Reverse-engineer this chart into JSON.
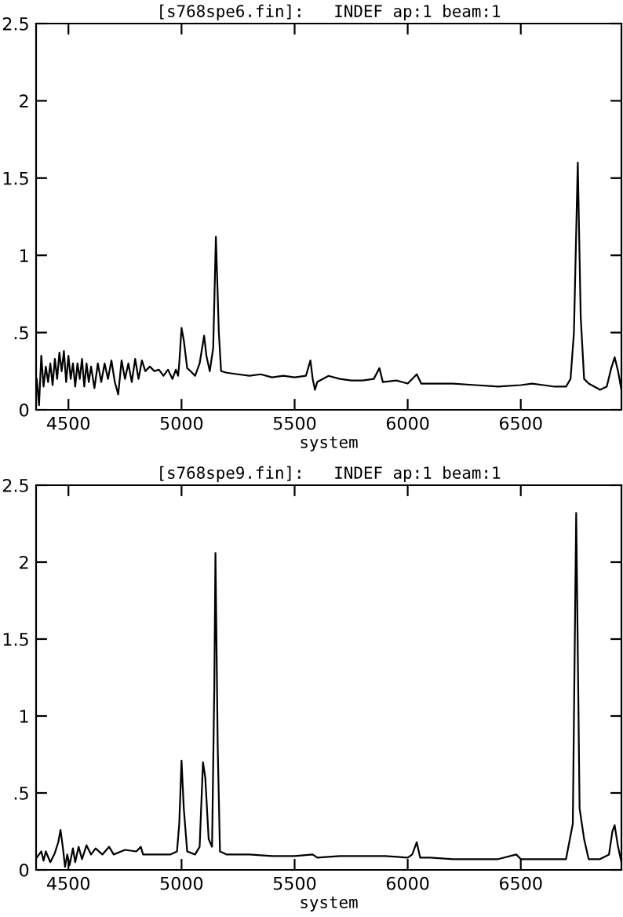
{
  "chart_data": [
    {
      "type": "line",
      "title": "[s768spe6.fin]:   INDEF ap:1 beam:1",
      "xlabel": "system",
      "xlim": [
        4357,
        6945
      ],
      "xticks": [
        4500,
        5000,
        5500,
        6000,
        6500
      ],
      "ylim": [
        0,
        2.5
      ],
      "yticks": [
        0,
        {
          "value": 0.5,
          "label": ".5"
        },
        1,
        1.5,
        2,
        2.5
      ],
      "grid": false,
      "legend": false,
      "marker": "none",
      "line_style": "solid",
      "series": [
        {
          "color": "#000000",
          "x": [
            4360,
            4370,
            4380,
            4390,
            4400,
            4410,
            4420,
            4430,
            4440,
            4450,
            4460,
            4470,
            4480,
            4490,
            4500,
            4510,
            4520,
            4530,
            4540,
            4550,
            4560,
            4570,
            4580,
            4590,
            4600,
            4615,
            4630,
            4645,
            4660,
            4675,
            4690,
            4705,
            4720,
            4735,
            4750,
            4765,
            4780,
            4795,
            4810,
            4825,
            4840,
            4860,
            4880,
            4900,
            4920,
            4940,
            4960,
            4975,
            4985,
            4990,
            5000,
            5010,
            5025,
            5040,
            5060,
            5080,
            5100,
            5110,
            5125,
            5140,
            5152,
            5165,
            5175,
            5200,
            5250,
            5300,
            5350,
            5400,
            5450,
            5500,
            5550,
            5570,
            5580,
            5590,
            5600,
            5650,
            5700,
            5750,
            5800,
            5850,
            5875,
            5890,
            5950,
            6000,
            6040,
            6060,
            6100,
            6200,
            6300,
            6400,
            6500,
            6550,
            6600,
            6650,
            6700,
            6720,
            6735,
            6752,
            6765,
            6780,
            6800,
            6850,
            6880,
            6900,
            6915,
            6930,
            6945
          ],
          "values": [
            0.2,
            0.03,
            0.35,
            0.15,
            0.28,
            0.18,
            0.3,
            0.16,
            0.33,
            0.2,
            0.37,
            0.25,
            0.38,
            0.18,
            0.35,
            0.2,
            0.3,
            0.15,
            0.3,
            0.2,
            0.33,
            0.15,
            0.3,
            0.18,
            0.28,
            0.14,
            0.3,
            0.18,
            0.3,
            0.2,
            0.32,
            0.18,
            0.1,
            0.32,
            0.2,
            0.3,
            0.18,
            0.33,
            0.2,
            0.32,
            0.25,
            0.28,
            0.25,
            0.26,
            0.22,
            0.26,
            0.2,
            0.26,
            0.22,
            0.3,
            0.53,
            0.45,
            0.27,
            0.25,
            0.22,
            0.3,
            0.48,
            0.35,
            0.25,
            0.4,
            1.12,
            0.5,
            0.25,
            0.24,
            0.23,
            0.22,
            0.23,
            0.21,
            0.22,
            0.21,
            0.22,
            0.32,
            0.2,
            0.13,
            0.18,
            0.22,
            0.2,
            0.19,
            0.19,
            0.2,
            0.27,
            0.18,
            0.19,
            0.17,
            0.23,
            0.17,
            0.17,
            0.17,
            0.16,
            0.15,
            0.16,
            0.17,
            0.16,
            0.15,
            0.15,
            0.2,
            0.5,
            1.6,
            0.6,
            0.2,
            0.17,
            0.13,
            0.15,
            0.27,
            0.34,
            0.25,
            0.13
          ]
        }
      ]
    },
    {
      "type": "line",
      "title": "[s768spe9.fin]:   INDEF ap:1 beam:1",
      "xlabel": "system",
      "xlim": [
        4357,
        6945
      ],
      "xticks": [
        4500,
        5000,
        5500,
        6000,
        6500
      ],
      "ylim": [
        0,
        2.5
      ],
      "yticks": [
        0,
        {
          "value": 0.5,
          "label": ".5"
        },
        1,
        1.5,
        2,
        2.5
      ],
      "grid": false,
      "legend": false,
      "marker": "none",
      "line_style": "solid",
      "series": [
        {
          "color": "#000000",
          "x": [
            4360,
            4380,
            4390,
            4400,
            4420,
            4440,
            4455,
            4465,
            4475,
            4485,
            4495,
            4505,
            4520,
            4530,
            4545,
            4560,
            4580,
            4600,
            4620,
            4650,
            4680,
            4700,
            4750,
            4800,
            4820,
            4830,
            4900,
            4950,
            4980,
            4990,
            5000,
            5010,
            5025,
            5060,
            5080,
            5095,
            5105,
            5120,
            5135,
            5145,
            5150,
            5160,
            5170,
            5200,
            5300,
            5400,
            5500,
            5580,
            5600,
            5700,
            5800,
            5900,
            6000,
            6020,
            6040,
            6055,
            6100,
            6200,
            6300,
            6400,
            6480,
            6500,
            6600,
            6700,
            6730,
            6745,
            6760,
            6780,
            6800,
            6850,
            6890,
            6905,
            6915,
            6930,
            6945
          ],
          "values": [
            0.08,
            0.12,
            0.06,
            0.12,
            0.05,
            0.11,
            0.18,
            0.26,
            0.15,
            0.02,
            0.1,
            0.03,
            0.14,
            0.05,
            0.15,
            0.07,
            0.16,
            0.1,
            0.14,
            0.1,
            0.15,
            0.1,
            0.13,
            0.12,
            0.15,
            0.1,
            0.1,
            0.1,
            0.12,
            0.3,
            0.71,
            0.4,
            0.12,
            0.1,
            0.15,
            0.7,
            0.6,
            0.2,
            0.15,
            1.2,
            2.06,
            0.8,
            0.12,
            0.1,
            0.1,
            0.09,
            0.09,
            0.1,
            0.08,
            0.09,
            0.09,
            0.09,
            0.08,
            0.1,
            0.18,
            0.08,
            0.08,
            0.07,
            0.07,
            0.07,
            0.1,
            0.07,
            0.07,
            0.07,
            0.3,
            2.32,
            0.4,
            0.2,
            0.07,
            0.07,
            0.1,
            0.25,
            0.29,
            0.15,
            0.05
          ]
        }
      ]
    }
  ]
}
